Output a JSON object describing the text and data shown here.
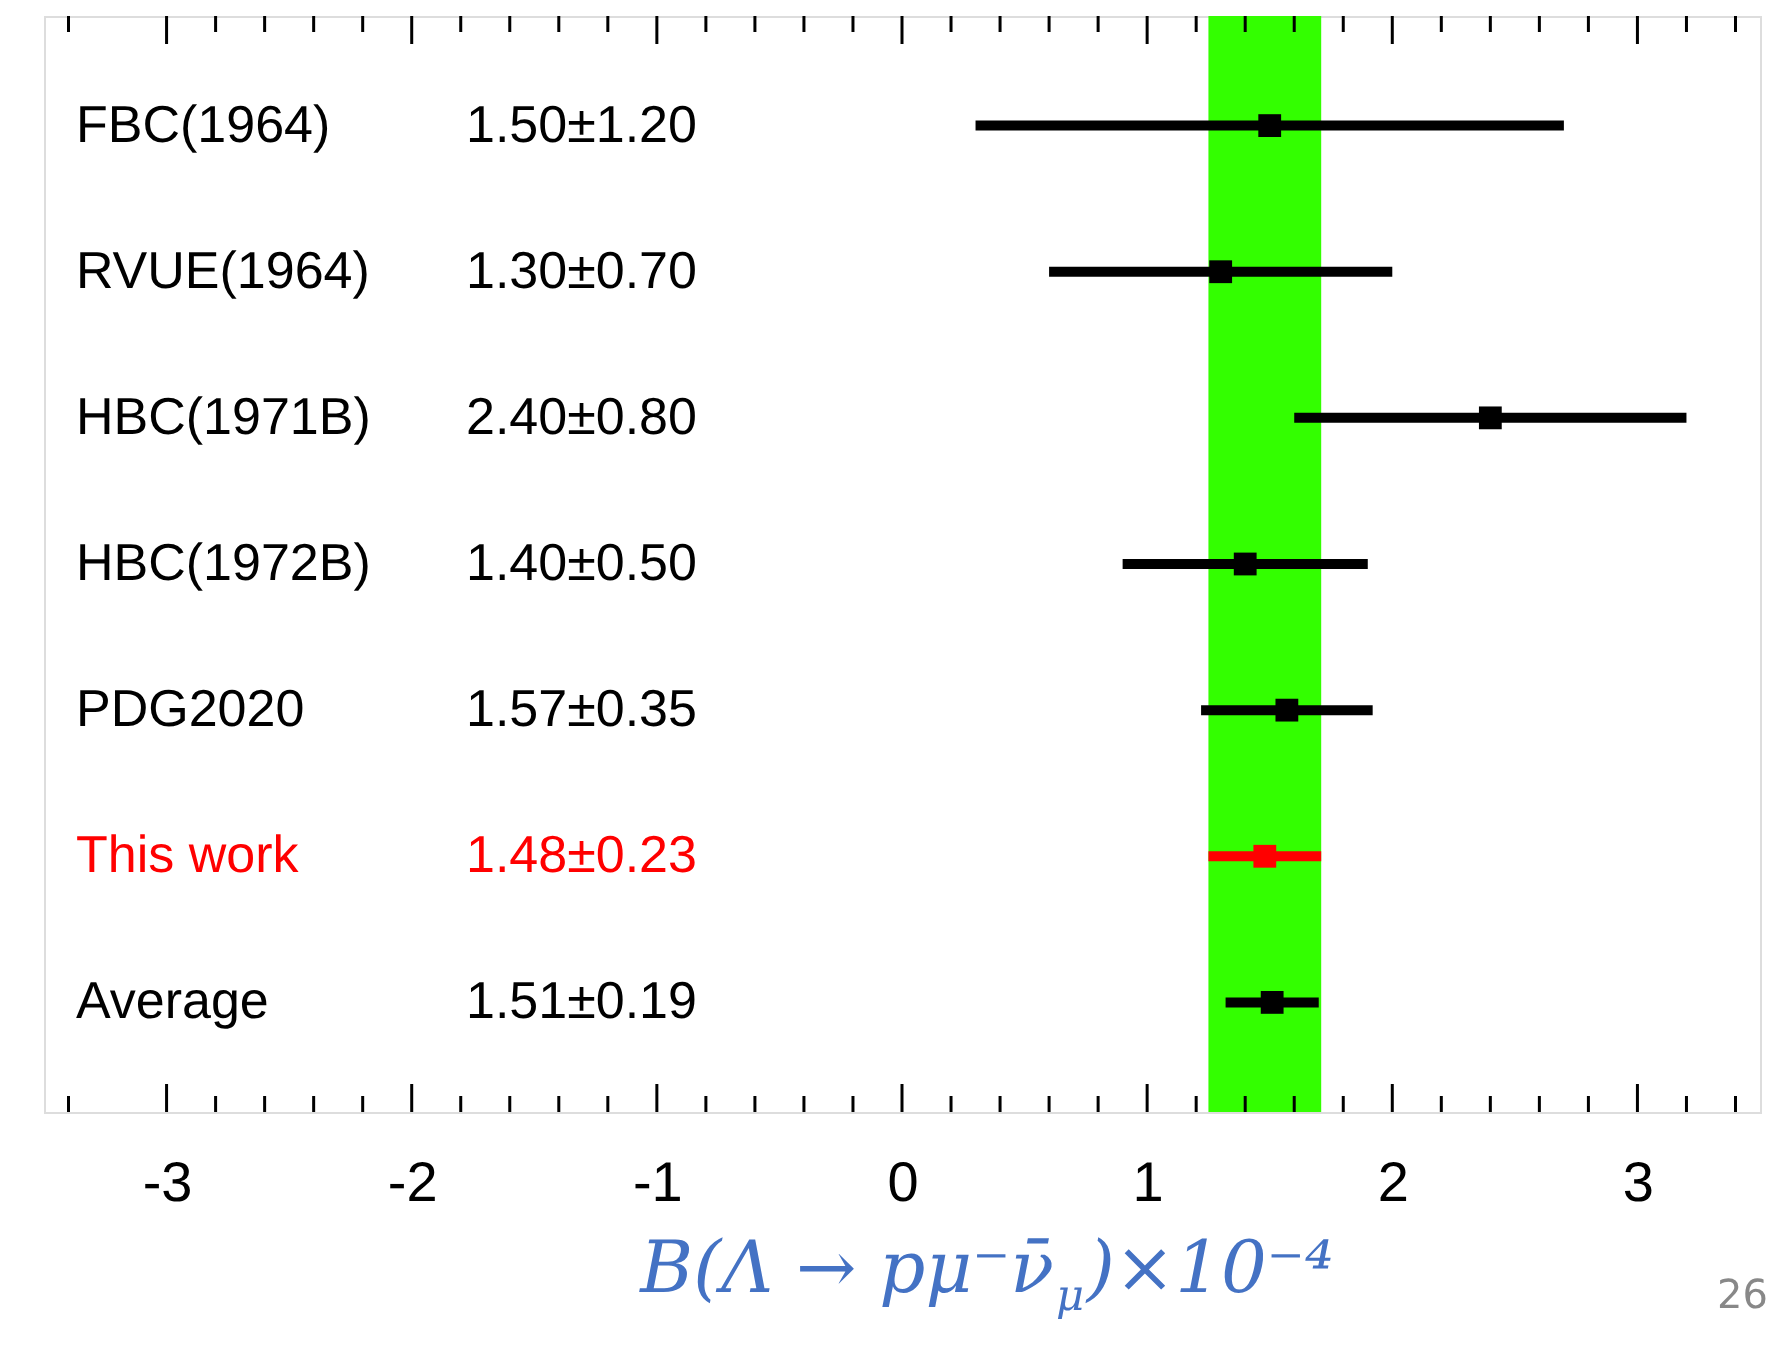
{
  "chart_data": {
    "type": "scatter",
    "orientation": "horizontal",
    "categories": [
      "FBC(1964)",
      "RVUE(1964)",
      "HBC(1971B)",
      "HBC(1972B)",
      "PDG2020",
      "This work",
      "Average"
    ],
    "values": [
      1.5,
      1.3,
      2.4,
      1.4,
      1.57,
      1.48,
      1.51
    ],
    "errors": [
      1.2,
      0.7,
      0.8,
      0.5,
      0.35,
      0.23,
      0.19
    ],
    "colors": [
      "#000000",
      "#000000",
      "#000000",
      "#000000",
      "#000000",
      "#ff0000",
      "#000000"
    ],
    "marker": "square",
    "xlim": [
      -3.5,
      3.5
    ],
    "xticks": [
      {
        "value": -3.4,
        "label": null
      },
      -3,
      {
        "value": -2.8,
        "label": null
      },
      {
        "value": -2.6,
        "label": null
      },
      {
        "value": -2.4,
        "label": null
      },
      {
        "value": -2.2,
        "label": null
      },
      -2,
      {
        "value": -1.8,
        "label": null
      },
      {
        "value": -1.6,
        "label": null
      },
      {
        "value": -1.4,
        "label": null
      },
      {
        "value": -1.2,
        "label": null
      },
      -1,
      {
        "value": -0.8,
        "label": null
      },
      {
        "value": -0.6,
        "label": null
      },
      {
        "value": -0.4,
        "label": null
      },
      {
        "value": -0.2,
        "label": null
      },
      0,
      {
        "value": 0.2,
        "label": null
      },
      {
        "value": 0.4,
        "label": null
      },
      {
        "value": 0.6,
        "label": null
      },
      {
        "value": 0.8,
        "label": null
      },
      1,
      {
        "value": 1.2,
        "label": null
      },
      {
        "value": 1.4,
        "label": null
      },
      {
        "value": 1.6,
        "label": null
      },
      {
        "value": 1.8,
        "label": null
      },
      2,
      {
        "value": 2.2,
        "label": null
      },
      {
        "value": 2.4,
        "label": null
      },
      {
        "value": 2.6,
        "label": null
      },
      {
        "value": 2.8,
        "label": null
      },
      3,
      {
        "value": 3.2,
        "label": null
      },
      {
        "value": 3.4,
        "label": null
      }
    ],
    "xlabel": "B(Λ → pμ⁻ν̄$_{μ}$)×10⁻⁴",
    "bands": [
      {
        "axis": "x",
        "from": 1.25,
        "to": 1.71,
        "color": "#33ff00"
      }
    ],
    "annotations": [
      "1.50±1.20",
      "1.30±0.70",
      "2.40±0.80",
      "1.40±0.50",
      "1.57±0.35",
      "1.48±0.23",
      "1.51±0.19",
      "26"
    ],
    "grid": false
  }
}
